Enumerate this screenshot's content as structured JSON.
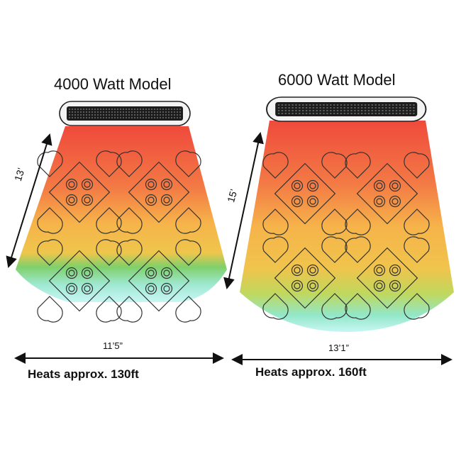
{
  "left_model": {
    "title": "4000 Watt Model",
    "depth_label": "13’",
    "width_label": "11’5”",
    "coverage": "Heats approx.  130ft"
  },
  "right_model": {
    "title": "6000 Watt Model",
    "depth_label": "15’",
    "width_label": "13’1”",
    "coverage": "Heats approx. 160ft"
  },
  "colors": {
    "heat_top": "#ef4a3c",
    "heat_mid": "#f6b34a",
    "heat_low": "#7fd06a",
    "heat_bottom": "#b9f4f2",
    "heater_body": "#e9e9e9"
  },
  "icons": [
    "heater-icon",
    "table-with-chairs-icon",
    "dimension-arrow-icon"
  ]
}
